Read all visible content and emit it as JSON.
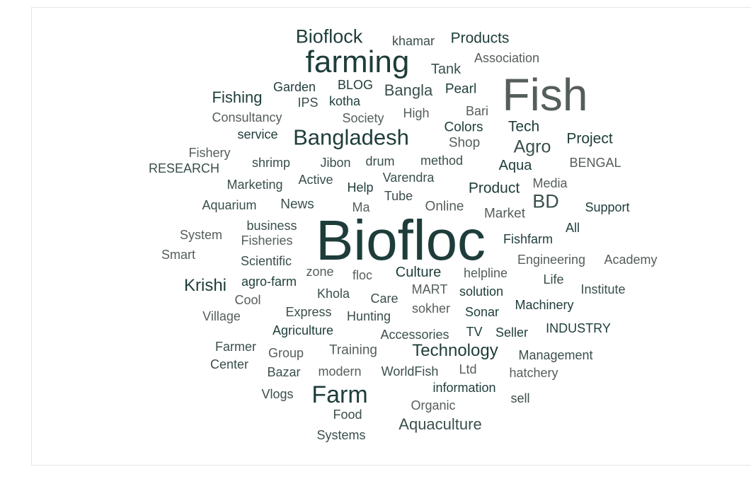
{
  "chart_data": {
    "type": "wordcloud",
    "colors": {
      "dark": "#1e3d3a",
      "mid": "#3a4f4c",
      "light": "#555e5c"
    },
    "words": [
      {
        "text": "Biofloc",
        "weight": 100,
        "tone": "dark"
      },
      {
        "text": "Fish",
        "weight": 80,
        "tone": "light"
      },
      {
        "text": "farming",
        "weight": 52,
        "tone": "dark"
      },
      {
        "text": "Farm",
        "weight": 40,
        "tone": "dark"
      },
      {
        "text": "Bangladesh",
        "weight": 38,
        "tone": "dark"
      },
      {
        "text": "Bioflock",
        "weight": 32,
        "tone": "dark"
      },
      {
        "text": "BD",
        "weight": 30,
        "tone": "mid"
      },
      {
        "text": "Agro",
        "weight": 28,
        "tone": "mid"
      },
      {
        "text": "Krishi",
        "weight": 28,
        "tone": "dark"
      },
      {
        "text": "Technology",
        "weight": 28,
        "tone": "dark"
      },
      {
        "text": "Fishing",
        "weight": 27,
        "tone": "dark"
      },
      {
        "text": "Aquaculture",
        "weight": 26,
        "tone": "mid"
      },
      {
        "text": "Bangla",
        "weight": 25,
        "tone": "mid"
      },
      {
        "text": "Project",
        "weight": 24,
        "tone": "dark"
      },
      {
        "text": "Products",
        "weight": 24,
        "tone": "dark"
      },
      {
        "text": "Tech",
        "weight": 24,
        "tone": "dark"
      },
      {
        "text": "Product",
        "weight": 24,
        "tone": "dark"
      },
      {
        "text": "Culture",
        "weight": 23,
        "tone": "dark"
      },
      {
        "text": "Tank",
        "weight": 23,
        "tone": "mid"
      },
      {
        "text": "Aqua",
        "weight": 23,
        "tone": "dark"
      },
      {
        "text": "Pearl",
        "weight": 22,
        "tone": "dark"
      },
      {
        "text": "Market",
        "weight": 22,
        "tone": "light"
      },
      {
        "text": "Online",
        "weight": 22,
        "tone": "light"
      },
      {
        "text": "News",
        "weight": 22,
        "tone": "mid"
      },
      {
        "text": "Colors",
        "weight": 22,
        "tone": "dark"
      },
      {
        "text": "Shop",
        "weight": 22,
        "tone": "light"
      },
      {
        "text": "Training",
        "weight": 22,
        "tone": "light"
      },
      {
        "text": "Association",
        "weight": 21,
        "tone": "light"
      },
      {
        "text": "Consultancy",
        "weight": 21,
        "tone": "light"
      },
      {
        "text": "Fishfarm",
        "weight": 21,
        "tone": "dark"
      },
      {
        "text": "Engineering",
        "weight": 21,
        "tone": "light"
      },
      {
        "text": "Academy",
        "weight": 21,
        "tone": "light"
      },
      {
        "text": "Management",
        "weight": 21,
        "tone": "mid"
      },
      {
        "text": "Care",
        "weight": 21,
        "tone": "mid"
      },
      {
        "text": "Hunting",
        "weight": 21,
        "tone": "mid"
      },
      {
        "text": "Varendra",
        "weight": 21,
        "tone": "mid"
      },
      {
        "text": "Active",
        "weight": 21,
        "tone": "mid"
      },
      {
        "text": "khamar",
        "weight": 21,
        "tone": "mid"
      },
      {
        "text": "BLOG",
        "weight": 21,
        "tone": "dark"
      },
      {
        "text": "Garden",
        "weight": 21,
        "tone": "dark"
      },
      {
        "text": "IPS",
        "weight": 21,
        "tone": "mid"
      },
      {
        "text": "kotha",
        "weight": 21,
        "tone": "dark"
      },
      {
        "text": "Society",
        "weight": 21,
        "tone": "light"
      },
      {
        "text": "High",
        "weight": 21,
        "tone": "light"
      },
      {
        "text": "Bari",
        "weight": 21,
        "tone": "light"
      },
      {
        "text": "service",
        "weight": 21,
        "tone": "dark"
      },
      {
        "text": "Fishery",
        "weight": 21,
        "tone": "light"
      },
      {
        "text": "RESEARCH",
        "weight": 21,
        "tone": "mid"
      },
      {
        "text": "shrimp",
        "weight": 21,
        "tone": "mid"
      },
      {
        "text": "Jibon",
        "weight": 21,
        "tone": "mid"
      },
      {
        "text": "drum",
        "weight": 21,
        "tone": "mid"
      },
      {
        "text": "method",
        "weight": 21,
        "tone": "mid"
      },
      {
        "text": "BENGAL",
        "weight": 21,
        "tone": "light"
      },
      {
        "text": "Marketing",
        "weight": 21,
        "tone": "mid"
      },
      {
        "text": "Help",
        "weight": 21,
        "tone": "dark"
      },
      {
        "text": "Tube",
        "weight": 21,
        "tone": "mid"
      },
      {
        "text": "Media",
        "weight": 21,
        "tone": "light"
      },
      {
        "text": "Aquarium",
        "weight": 21,
        "tone": "mid"
      },
      {
        "text": "Ma",
        "weight": 21,
        "tone": "light"
      },
      {
        "text": "Support",
        "weight": 21,
        "tone": "dark"
      },
      {
        "text": "System",
        "weight": 21,
        "tone": "light"
      },
      {
        "text": "business",
        "weight": 21,
        "tone": "mid"
      },
      {
        "text": "Fisheries",
        "weight": 21,
        "tone": "light"
      },
      {
        "text": "All",
        "weight": 21,
        "tone": "dark"
      },
      {
        "text": "Smart",
        "weight": 21,
        "tone": "light"
      },
      {
        "text": "Scientific",
        "weight": 21,
        "tone": "mid"
      },
      {
        "text": "zone",
        "weight": 21,
        "tone": "light"
      },
      {
        "text": "floc",
        "weight": 21,
        "tone": "light"
      },
      {
        "text": "helpline",
        "weight": 21,
        "tone": "light"
      },
      {
        "text": "agro-farm",
        "weight": 21,
        "tone": "dark"
      },
      {
        "text": "Life",
        "weight": 21,
        "tone": "mid"
      },
      {
        "text": "Khola",
        "weight": 21,
        "tone": "mid"
      },
      {
        "text": "MART",
        "weight": 21,
        "tone": "light"
      },
      {
        "text": "solution",
        "weight": 21,
        "tone": "dark"
      },
      {
        "text": "Institute",
        "weight": 21,
        "tone": "mid"
      },
      {
        "text": "Cool",
        "weight": 21,
        "tone": "light"
      },
      {
        "text": "Machinery",
        "weight": 21,
        "tone": "dark"
      },
      {
        "text": "Village",
        "weight": 21,
        "tone": "light"
      },
      {
        "text": "Express",
        "weight": 21,
        "tone": "mid"
      },
      {
        "text": "sokher",
        "weight": 21,
        "tone": "light"
      },
      {
        "text": "Sonar",
        "weight": 21,
        "tone": "dark"
      },
      {
        "text": "INDUSTRY",
        "weight": 21,
        "tone": "dark"
      },
      {
        "text": "Agriculture",
        "weight": 21,
        "tone": "dark"
      },
      {
        "text": "Accessories",
        "weight": 21,
        "tone": "mid"
      },
      {
        "text": "TV",
        "weight": 21,
        "tone": "dark"
      },
      {
        "text": "Seller",
        "weight": 21,
        "tone": "dark"
      },
      {
        "text": "Farmer",
        "weight": 21,
        "tone": "mid"
      },
      {
        "text": "Group",
        "weight": 21,
        "tone": "light"
      },
      {
        "text": "Center",
        "weight": 21,
        "tone": "mid"
      },
      {
        "text": "Bazar",
        "weight": 21,
        "tone": "mid"
      },
      {
        "text": "modern",
        "weight": 21,
        "tone": "light"
      },
      {
        "text": "WorldFish",
        "weight": 21,
        "tone": "mid"
      },
      {
        "text": "Ltd",
        "weight": 21,
        "tone": "light"
      },
      {
        "text": "hatchery",
        "weight": 21,
        "tone": "light"
      },
      {
        "text": "Vlogs",
        "weight": 21,
        "tone": "mid"
      },
      {
        "text": "information",
        "weight": 21,
        "tone": "dark"
      },
      {
        "text": "Organic",
        "weight": 21,
        "tone": "light"
      },
      {
        "text": "sell",
        "weight": 21,
        "tone": "mid"
      },
      {
        "text": "Food",
        "weight": 21,
        "tone": "mid"
      },
      {
        "text": "Systems",
        "weight": 21,
        "tone": "mid"
      }
    ]
  }
}
